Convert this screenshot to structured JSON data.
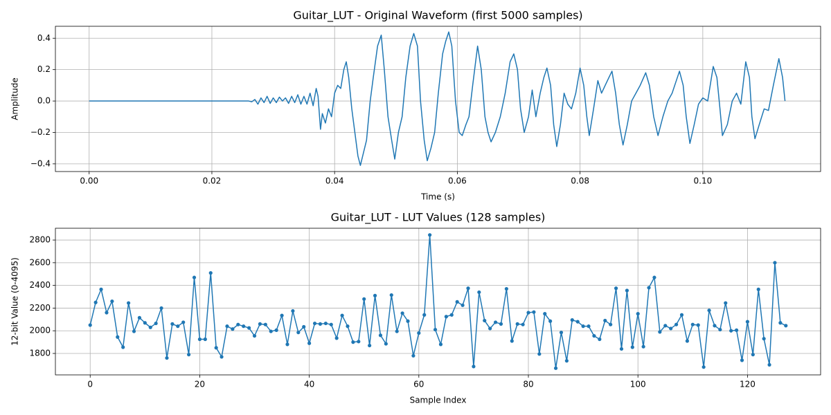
{
  "chart_data": [
    {
      "type": "line",
      "title": "Guitar_LUT - Original Waveform (first 5000 samples)",
      "x_label": "Time (s)",
      "y_label": "Amplitude",
      "color": "#1f77b4",
      "grid": true,
      "markers": false,
      "xlim": [
        -0.0055,
        0.1192
      ],
      "ylim": [
        -0.449,
        0.476
      ],
      "xticks": [
        {
          "value": 0,
          "label": "0.00"
        },
        {
          "value": 0.02,
          "label": "0.02"
        },
        {
          "value": 0.04,
          "label": "0.04"
        },
        {
          "value": 0.06,
          "label": "0.06"
        },
        {
          "value": 0.08,
          "label": "0.08"
        },
        {
          "value": 0.1,
          "label": "0.10"
        }
      ],
      "yticks": [
        {
          "value": -0.4,
          "label": "−0.4"
        },
        {
          "value": -0.2,
          "label": "−0.2"
        },
        {
          "value": 0,
          "label": "0.0"
        },
        0.2,
        0.4
      ],
      "x": [
        0,
        0.026,
        0.0265,
        0.027,
        0.0275,
        0.028,
        0.0285,
        0.029,
        0.0295,
        0.03,
        0.0305,
        0.031,
        0.0315,
        0.032,
        0.0325,
        0.033,
        0.0335,
        0.034,
        0.0345,
        0.035,
        0.0355,
        0.036,
        0.0365,
        0.037,
        0.0373,
        0.0377,
        0.038,
        0.0385,
        0.039,
        0.0395,
        0.04,
        0.0405,
        0.041,
        0.0415,
        0.0419,
        0.0423,
        0.0428,
        0.0433,
        0.0438,
        0.0442,
        0.0447,
        0.0452,
        0.0458,
        0.0463,
        0.047,
        0.0476,
        0.0481,
        0.0487,
        0.0493,
        0.0498,
        0.0504,
        0.051,
        0.0516,
        0.0523,
        0.0529,
        0.0535,
        0.054,
        0.0546,
        0.0551,
        0.0557,
        0.0563,
        0.0569,
        0.0576,
        0.0581,
        0.0586,
        0.0591,
        0.0597,
        0.0603,
        0.0608,
        0.0614,
        0.0619,
        0.0625,
        0.0633,
        0.0639,
        0.0645,
        0.065,
        0.0655,
        0.0662,
        0.067,
        0.0678,
        0.0686,
        0.0692,
        0.0698,
        0.0703,
        0.0709,
        0.0716,
        0.0722,
        0.0728,
        0.0735,
        0.0741,
        0.0746,
        0.0752,
        0.0757,
        0.0762,
        0.0768,
        0.0774,
        0.078,
        0.0786,
        0.0793,
        0.08,
        0.0806,
        0.0811,
        0.0815,
        0.0822,
        0.0829,
        0.0835,
        0.0841,
        0.0847,
        0.0852,
        0.0858,
        0.0864,
        0.087,
        0.0877,
        0.0884,
        0.0891,
        0.0898,
        0.0907,
        0.0913,
        0.092,
        0.0927,
        0.0935,
        0.0943,
        0.095,
        0.0956,
        0.0962,
        0.0968,
        0.0973,
        0.0979,
        0.0986,
        0.0993,
        0.1,
        0.1008,
        0.1017,
        0.1023,
        0.1028,
        0.1032,
        0.104,
        0.1048,
        0.1055,
        0.1062,
        0.107,
        0.1076,
        0.108,
        0.1085,
        0.1092,
        0.11,
        0.1107,
        0.1115,
        0.1124,
        0.113,
        0.1134
      ],
      "values": [
        0,
        0,
        -0.005,
        0.01,
        -0.02,
        0.02,
        -0.01,
        0.03,
        -0.015,
        0.02,
        -0.01,
        0.025,
        0,
        0.02,
        -0.015,
        0.03,
        -0.01,
        0.04,
        -0.02,
        0.03,
        -0.02,
        0.05,
        -0.03,
        0.08,
        0.03,
        -0.18,
        -0.08,
        -0.14,
        -0.05,
        -0.1,
        0.05,
        0.1,
        0.08,
        0.2,
        0.25,
        0.15,
        -0.05,
        -0.2,
        -0.35,
        -0.41,
        -0.33,
        -0.25,
        0,
        0.15,
        0.35,
        0.42,
        0.2,
        -0.1,
        -0.25,
        -0.37,
        -0.2,
        -0.1,
        0.15,
        0.35,
        0.43,
        0.35,
        0,
        -0.25,
        -0.38,
        -0.3,
        -0.2,
        0.05,
        0.3,
        0.38,
        0.44,
        0.35,
        0,
        -0.2,
        -0.22,
        -0.15,
        -0.1,
        0.1,
        0.35,
        0.2,
        -0.1,
        -0.2,
        -0.26,
        -0.2,
        -0.1,
        0.05,
        0.25,
        0.3,
        0.2,
        -0.05,
        -0.2,
        -0.1,
        0.07,
        -0.1,
        0.05,
        0.15,
        0.21,
        0.1,
        -0.15,
        -0.29,
        -0.15,
        0.05,
        -0.02,
        -0.05,
        0.05,
        0.21,
        0.1,
        -0.1,
        -0.22,
        -0.05,
        0.13,
        0.05,
        0.1,
        0.15,
        0.19,
        0.05,
        -0.15,
        -0.28,
        -0.15,
        0,
        0.05,
        0.1,
        0.18,
        0.1,
        -0.1,
        -0.22,
        -0.1,
        0,
        0.05,
        0.12,
        0.19,
        0.1,
        -0.1,
        -0.27,
        -0.15,
        -0.02,
        0.02,
        0,
        0.22,
        0.15,
        -0.05,
        -0.22,
        -0.15,
        0,
        0.05,
        -0.02,
        0.25,
        0.15,
        -0.1,
        -0.24,
        -0.15,
        -0.05,
        -0.06,
        0.1,
        0.27,
        0.15,
        0
      ]
    },
    {
      "type": "line",
      "title": "Guitar_LUT - LUT Values (128 samples)",
      "x_label": "Sample Index",
      "y_label": "12-bit Value (0-4095)",
      "color": "#1f77b4",
      "grid": true,
      "markers": true,
      "xlim": [
        -6.35,
        133.35
      ],
      "ylim": [
        1611,
        2904
      ],
      "xticks": [
        0,
        20,
        40,
        60,
        80,
        100,
        120
      ],
      "yticks": [
        1800,
        2000,
        2200,
        2400,
        2600,
        2800
      ],
      "x": [
        0,
        1,
        2,
        3,
        4,
        5,
        6,
        7,
        8,
        9,
        10,
        11,
        12,
        13,
        14,
        15,
        16,
        17,
        18,
        19,
        20,
        21,
        22,
        23,
        24,
        25,
        26,
        27,
        28,
        29,
        30,
        31,
        32,
        33,
        34,
        35,
        36,
        37,
        38,
        39,
        40,
        41,
        42,
        43,
        44,
        45,
        46,
        47,
        48,
        49,
        50,
        51,
        52,
        53,
        54,
        55,
        56,
        57,
        58,
        59,
        60,
        61,
        62,
        63,
        64,
        65,
        66,
        67,
        68,
        69,
        70,
        71,
        72,
        73,
        74,
        75,
        76,
        77,
        78,
        79,
        80,
        81,
        82,
        83,
        84,
        85,
        86,
        87,
        88,
        89,
        90,
        91,
        92,
        93,
        94,
        95,
        96,
        97,
        98,
        99,
        100,
        101,
        102,
        103,
        104,
        105,
        106,
        107,
        108,
        109,
        110,
        111,
        112,
        113,
        114,
        115,
        116,
        117,
        118,
        119,
        120,
        121,
        122,
        123,
        124,
        125,
        126,
        127
      ],
      "values": [
        2050,
        2250,
        2365,
        2160,
        2260,
        1945,
        1855,
        2245,
        1995,
        2115,
        2070,
        2030,
        2065,
        2200,
        1760,
        2060,
        2040,
        2075,
        1790,
        2470,
        1925,
        1925,
        2510,
        1850,
        1770,
        2040,
        2015,
        2055,
        2040,
        2025,
        1955,
        2060,
        2055,
        1995,
        2005,
        2135,
        1880,
        2175,
        1985,
        2035,
        1890,
        2065,
        2060,
        2065,
        2055,
        1935,
        2135,
        2040,
        1900,
        1905,
        2280,
        1870,
        2310,
        1960,
        1885,
        2315,
        1995,
        2155,
        2085,
        1780,
        1980,
        2140,
        2845,
        2010,
        1880,
        2125,
        2140,
        2255,
        2225,
        2375,
        1685,
        2340,
        2090,
        2020,
        2075,
        2060,
        2370,
        1910,
        2060,
        2055,
        2160,
        2165,
        1795,
        2150,
        2085,
        1670,
        1985,
        1735,
        2095,
        2080,
        2040,
        2040,
        1955,
        1925,
        2090,
        2055,
        2375,
        1840,
        2355,
        1855,
        2150,
        1860,
        2380,
        2470,
        1990,
        2045,
        2020,
        2055,
        2140,
        1910,
        2055,
        2050,
        1680,
        2180,
        2045,
        2010,
        2245,
        2000,
        2005,
        1740,
        2080,
        1790,
        2365,
        1930,
        1700,
        2600,
        2070,
        2045
      ]
    }
  ]
}
